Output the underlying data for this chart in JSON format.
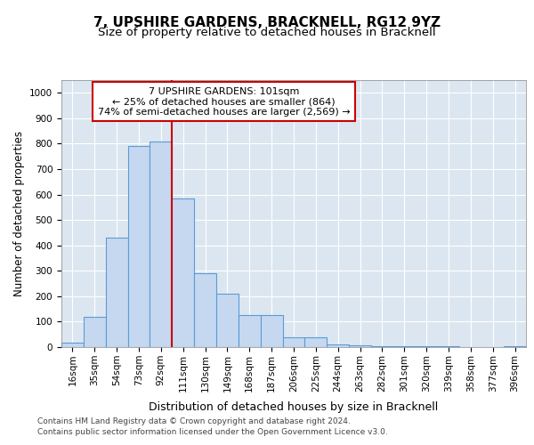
{
  "title": "7, UPSHIRE GARDENS, BRACKNELL, RG12 9YZ",
  "subtitle": "Size of property relative to detached houses in Bracknell",
  "xlabel": "Distribution of detached houses by size in Bracknell",
  "ylabel": "Number of detached properties",
  "categories": [
    "16sqm",
    "35sqm",
    "54sqm",
    "73sqm",
    "92sqm",
    "111sqm",
    "130sqm",
    "149sqm",
    "168sqm",
    "187sqm",
    "206sqm",
    "225sqm",
    "244sqm",
    "263sqm",
    "282sqm",
    "301sqm",
    "320sqm",
    "339sqm",
    "358sqm",
    "377sqm",
    "396sqm"
  ],
  "values": [
    18,
    120,
    430,
    790,
    810,
    585,
    290,
    210,
    125,
    125,
    38,
    38,
    12,
    8,
    4,
    5,
    3,
    2,
    1,
    1,
    5
  ],
  "bar_color": "#c5d8f0",
  "bar_edge_color": "#5b9bd5",
  "vline_x": 4.5,
  "vline_color": "#cc0000",
  "annotation_line1": "7 UPSHIRE GARDENS: 101sqm",
  "annotation_line2": "← 25% of detached houses are smaller (864)",
  "annotation_line3": "74% of semi-detached houses are larger (2,569) →",
  "annotation_box_color": "#ffffff",
  "annotation_box_edge_color": "#cc0000",
  "ylim": [
    0,
    1050
  ],
  "yticks": [
    0,
    100,
    200,
    300,
    400,
    500,
    600,
    700,
    800,
    900,
    1000
  ],
  "plot_bg_color": "#dce6f1",
  "footer_line1": "Contains HM Land Registry data © Crown copyright and database right 2024.",
  "footer_line2": "Contains public sector information licensed under the Open Government Licence v3.0.",
  "title_fontsize": 11,
  "subtitle_fontsize": 9.5,
  "xlabel_fontsize": 9,
  "ylabel_fontsize": 8.5,
  "tick_fontsize": 7.5,
  "annotation_fontsize": 8,
  "footer_fontsize": 6.5
}
